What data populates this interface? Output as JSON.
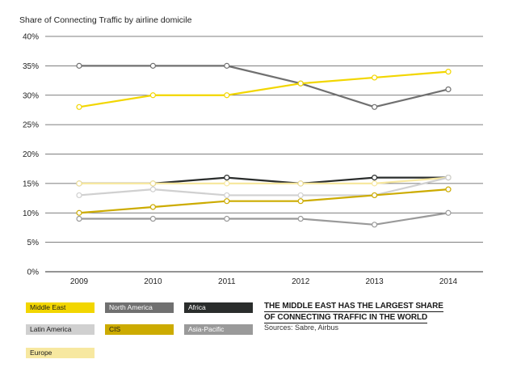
{
  "chart_data": {
    "type": "line",
    "title": "Share of Connecting Traffic by airline domicile",
    "categories": [
      "2009",
      "2010",
      "2011",
      "2012",
      "2013",
      "2014"
    ],
    "ylim": [
      0,
      40
    ],
    "yticks": [
      "0%",
      "5%",
      "10%",
      "15%",
      "20%",
      "25%",
      "30%",
      "35%",
      "40%"
    ],
    "ytick_values": [
      0,
      5,
      10,
      15,
      20,
      25,
      30,
      35,
      40
    ],
    "series": [
      {
        "name": "North America",
        "color": "#707070",
        "values": [
          35,
          35,
          35,
          32,
          28,
          31
        ]
      },
      {
        "name": "Middle East",
        "color": "#f2d600",
        "values": [
          28,
          30,
          30,
          32,
          33,
          34
        ]
      },
      {
        "name": "Africa",
        "color": "#2a2d2c",
        "values": [
          15,
          15,
          16,
          15,
          16,
          16
        ]
      },
      {
        "name": "Europe",
        "color": "#f7e8a0",
        "values": [
          15,
          15,
          15,
          15,
          15,
          16
        ]
      },
      {
        "name": "Latin America",
        "color": "#d0d0d0",
        "values": [
          13,
          14,
          13,
          13,
          13,
          16
        ]
      },
      {
        "name": "CIS",
        "color": "#ccab00",
        "values": [
          10,
          11,
          12,
          12,
          13,
          14
        ]
      },
      {
        "name": "Asia-Pacific",
        "color": "#9a9a9a",
        "values": [
          9,
          9,
          9,
          9,
          8,
          10
        ]
      }
    ]
  },
  "legend": {
    "items": [
      {
        "label": "Middle East",
        "bg": "#f2d600",
        "fg": "#1a1a1a"
      },
      {
        "label": "North America",
        "bg": "#707070",
        "fg": "#ffffff"
      },
      {
        "label": "Africa",
        "bg": "#2a2d2c",
        "fg": "#ffffff"
      },
      {
        "label": "Latin America",
        "bg": "#d0d0d0",
        "fg": "#1a1a1a"
      },
      {
        "label": "CIS",
        "bg": "#ccab00",
        "fg": "#1a1a1a"
      },
      {
        "label": "Asia-Pacific",
        "bg": "#9a9a9a",
        "fg": "#ffffff"
      },
      {
        "label": "Europe",
        "bg": "#f7e8a0",
        "fg": "#1a1a1a"
      }
    ]
  },
  "headline": {
    "line1": "THE MIDDLE EAST HAS THE LARGEST SHARE",
    "line2": "OF CONNECTING TRAFFIC IN THE WORLD"
  },
  "sources": "Sources: Sabre, Airbus"
}
